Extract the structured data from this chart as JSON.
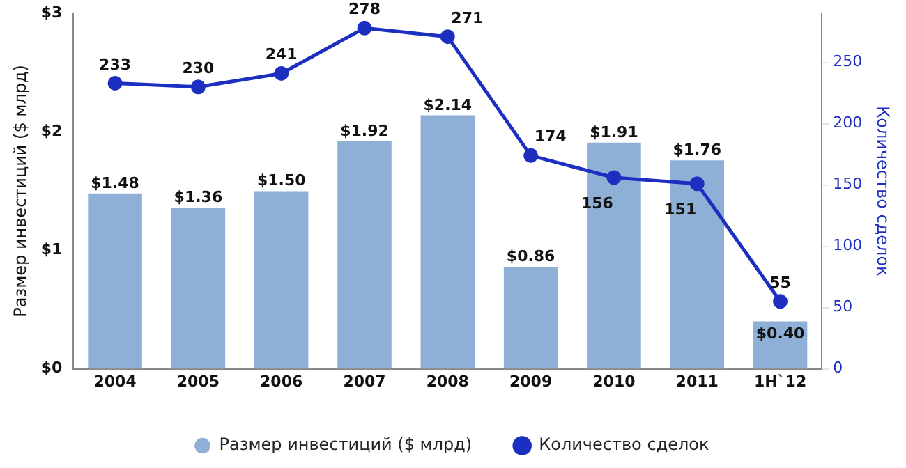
{
  "chart_data": {
    "type": "bar",
    "categories": [
      "2004",
      "2005",
      "2006",
      "2007",
      "2008",
      "2009",
      "2010",
      "2011",
      "1H`12"
    ],
    "ylabel": "Размер инвестиций ($ млрд)",
    "y2label": "Количество сделок",
    "ylim": [
      0,
      3
    ],
    "yticks": [
      {
        "value": 0,
        "label": "$0"
      },
      {
        "value": 1,
        "label": "$1"
      },
      {
        "value": 2,
        "label": "$2"
      },
      {
        "value": 3,
        "label": "$3"
      }
    ],
    "y2lim": [
      0,
      290
    ],
    "y2ticks": [
      0,
      50,
      100,
      150,
      200,
      250
    ],
    "series": [
      {
        "name": "Размер инвестиций ($ млрд)",
        "color": "#8fb0d6",
        "values": [
          1.48,
          1.36,
          1.5,
          1.92,
          2.14,
          0.86,
          1.91,
          1.76,
          0.4
        ],
        "value_labels": [
          "$1.48",
          "$1.36",
          "$1.50",
          "$1.92",
          "$2.14",
          "$0.86",
          "$1.91",
          "$1.76",
          "$0.40"
        ]
      },
      {
        "name": "Количество сделок",
        "type": "line",
        "axis": "y2",
        "color": "#1c2fc0",
        "values": [
          233,
          230,
          241,
          278,
          271,
          174,
          156,
          151,
          55
        ],
        "value_labels": [
          "233",
          "230",
          "241",
          "278",
          "271",
          "174",
          "156",
          "151",
          "55"
        ]
      }
    ],
    "grid": false,
    "legend": "bottom",
    "marker": "circle",
    "line_style": "solid"
  }
}
